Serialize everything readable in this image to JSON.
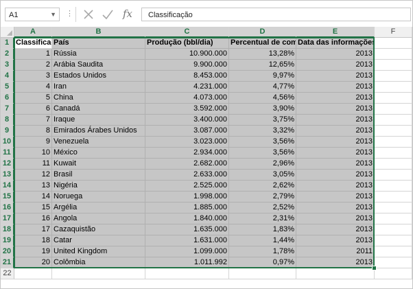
{
  "formula_bar": {
    "name_box": "A1",
    "formula": "Classificação",
    "fx_label": "fx"
  },
  "columns": [
    "A",
    "B",
    "C",
    "D",
    "E",
    "F"
  ],
  "row_numbers": [
    "1",
    "2",
    "3",
    "4",
    "5",
    "6",
    "7",
    "8",
    "9",
    "10",
    "11",
    "12",
    "13",
    "14",
    "15",
    "16",
    "17",
    "18",
    "19",
    "20",
    "21",
    "22"
  ],
  "header": [
    "Classificação",
    "País",
    "Produção (bbl/dia)",
    "Percentual de com",
    "Data das informações"
  ],
  "rows": [
    [
      "1",
      "Rússia",
      "10.900.000",
      "13,28%",
      "2013"
    ],
    [
      "2",
      "Arábia Saudita",
      "9.900.000",
      "12,65%",
      "2013"
    ],
    [
      "3",
      "Estados Unidos",
      "8.453.000",
      "9,97%",
      "2013"
    ],
    [
      "4",
      "Iran",
      "4.231.000",
      "4,77%",
      "2013"
    ],
    [
      "5",
      "China",
      "4.073.000",
      "4,56%",
      "2013"
    ],
    [
      "6",
      "Canadá",
      "3.592.000",
      "3,90%",
      "2013"
    ],
    [
      "7",
      "Iraque",
      "3.400.000",
      "3,75%",
      "2013"
    ],
    [
      "8",
      "Emirados Árabes Unidos",
      "3.087.000",
      "3,32%",
      "2013"
    ],
    [
      "9",
      "Venezuela",
      "3.023.000",
      "3,56%",
      "2013"
    ],
    [
      "10",
      "México",
      "2.934.000",
      "3,56%",
      "2013"
    ],
    [
      "11",
      "Kuwait",
      "2.682.000",
      "2,96%",
      "2013"
    ],
    [
      "12",
      "Brasil",
      "2.633.000",
      "3,05%",
      "2013"
    ],
    [
      "13",
      "Nigéria",
      "2.525.000",
      "2,62%",
      "2013"
    ],
    [
      "14",
      "Noruega",
      "1.998.000",
      "2,79%",
      "2013"
    ],
    [
      "15",
      "Argélia",
      "1.885.000",
      "2,52%",
      "2013"
    ],
    [
      "16",
      "Angola",
      "1.840.000",
      "2,31%",
      "2013"
    ],
    [
      "17",
      "Cazaquistão",
      "1.635.000",
      "1,83%",
      "2013"
    ],
    [
      "18",
      "Catar",
      "1.631.000",
      "1,44%",
      "2013"
    ],
    [
      "19",
      "United Kingdom",
      "1.099.000",
      "1,78%",
      "2011"
    ],
    [
      "20",
      "Colômbia",
      "1.011.992",
      "0,97%",
      "2013"
    ]
  ],
  "icons": {
    "cancel": "close-icon",
    "enter": "check-icon",
    "insert_function": "fx-icon",
    "more": "dots-icon",
    "name_box_dropdown": "chevron-down-icon"
  },
  "colors": {
    "selection_accent": "#217346",
    "selection_fill": "#c6c6c6",
    "header_fill": "#f0f0f0"
  }
}
